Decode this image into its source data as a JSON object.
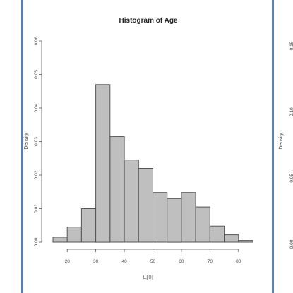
{
  "main_chart": {
    "chart_data": {
      "type": "bar",
      "title": "Histogram of Age",
      "xlabel": "나이",
      "ylabel": "Density",
      "bins": [
        {
          "x0": 15,
          "x1": 20,
          "density": 0.0015
        },
        {
          "x0": 20,
          "x1": 25,
          "density": 0.0045
        },
        {
          "x0": 25,
          "x1": 30,
          "density": 0.01
        },
        {
          "x0": 30,
          "x1": 35,
          "density": 0.047
        },
        {
          "x0": 35,
          "x1": 40,
          "density": 0.0315
        },
        {
          "x0": 40,
          "x1": 45,
          "density": 0.0245
        },
        {
          "x0": 45,
          "x1": 50,
          "density": 0.022
        },
        {
          "x0": 50,
          "x1": 55,
          "density": 0.0148
        },
        {
          "x0": 55,
          "x1": 60,
          "density": 0.013
        },
        {
          "x0": 60,
          "x1": 65,
          "density": 0.0148
        },
        {
          "x0": 65,
          "x1": 70,
          "density": 0.0105
        },
        {
          "x0": 70,
          "x1": 75,
          "density": 0.0048
        },
        {
          "x0": 75,
          "x1": 80,
          "density": 0.0022
        },
        {
          "x0": 80,
          "x1": 85,
          "density": 0.0005
        }
      ],
      "xticks": [
        20,
        30,
        40,
        50,
        60,
        70,
        80
      ],
      "xtick_labels": [
        "20",
        "30",
        "40",
        "50",
        "60",
        "70",
        "80"
      ],
      "yticks": [
        0,
        0.01,
        0.02,
        0.03,
        0.04,
        0.05,
        0.06
      ],
      "ytick_labels": [
        "0.00",
        "0.01",
        "0.02",
        "0.03",
        "0.04",
        "0.05",
        "0.06"
      ],
      "xlim": [
        15,
        85
      ],
      "ylim": [
        0,
        0.06
      ],
      "grid": false,
      "legend": "none"
    },
    "colors": {
      "bar_fill": "#bfbfbf",
      "bar_stroke": "#555555",
      "text": "#333333"
    }
  },
  "left_panel": {
    "ylabel": "Density"
  },
  "right_panel": {
    "ylabel": "Density",
    "ytick_labels": [
      "0.15",
      "0.10",
      "0.05",
      "0.00"
    ],
    "yticks": [
      0.15,
      0.1,
      0.05,
      0.0
    ],
    "ylim": [
      0,
      0.15
    ]
  },
  "frame": {
    "border_color": "#5b7fb0"
  }
}
